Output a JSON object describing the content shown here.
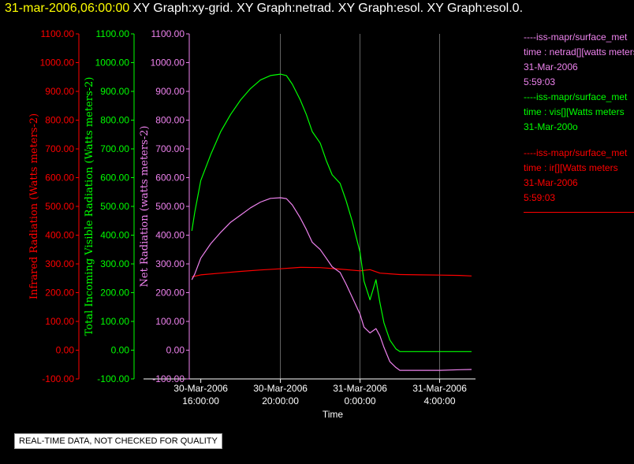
{
  "header": {
    "date_label": "31-mar-2006,06:00:00",
    "graph_labels": [
      "XY Graph:xy-grid.",
      "XY Graph:netrad.",
      "XY Graph:esol.",
      "XY Graph:esol.0."
    ]
  },
  "legend": [
    {
      "color": "#ee82ee",
      "lines": [
        "----iss-mapr/surface_met",
        "time : netrad[][watts meters",
        "31-Mar-2006",
        "5:59:03"
      ]
    },
    {
      "color": "#00ff00",
      "lines": [
        "----iss-mapr/surface_met",
        "time : vis[][Watts meters",
        "31-Mar-200o"
      ]
    },
    {
      "color": "#ff0000",
      "lines": [
        "----iss-mapr/surface_met",
        "time : ir[][Watts meters",
        "31-Mar-2006",
        "5:59:03"
      ]
    }
  ],
  "notice": "REAL-TIME DATA, NOT CHECKED FOR QUALITY",
  "chart_data": {
    "type": "line",
    "xlabel": "Time",
    "x_ticks": [
      {
        "hour": 16,
        "label1": "30-Mar-2006",
        "label2": "16:00:00"
      },
      {
        "hour": 20,
        "label1": "30-Mar-2006",
        "label2": "20:00:00"
      },
      {
        "hour": 24,
        "label1": "31-Mar-2006",
        "label2": "0:00:00"
      },
      {
        "hour": 28,
        "label1": "31-Mar-2006",
        "label2": "4:00:00"
      }
    ],
    "xlim": [
      15.5,
      29.8
    ],
    "grid": "vertical",
    "y_axes": [
      {
        "name": "infrared",
        "label": "Infrared Radiation (Watts meters-2)",
        "color": "#ff0000",
        "ticks": [
          "-100.00",
          "0.00",
          "100.00",
          "200.00",
          "300.00",
          "400.00",
          "500.00",
          "600.00",
          "700.00",
          "800.00",
          "900.00",
          "1000.00",
          "1100.00"
        ],
        "ylim": [
          -100,
          1100
        ]
      },
      {
        "name": "visible",
        "label": "Total Incoming Visible Radiation (Watts meters-2)",
        "color": "#00ff00",
        "ticks": [
          "-100.00",
          "0.00",
          "100.00",
          "200.00",
          "300.00",
          "400.00",
          "500.00",
          "600.00",
          "700.00",
          "800.00",
          "900.00",
          "1000.00",
          "1100.00"
        ],
        "ylim": [
          -100,
          1100
        ]
      },
      {
        "name": "netrad",
        "label": "Net Radiation (watts meters-2)",
        "color": "#ee82ee",
        "ticks": [
          "-100.00",
          "0.00",
          "100.00",
          "200.00",
          "300.00",
          "400.00",
          "500.00",
          "600.00",
          "700.00",
          "800.00",
          "900.00",
          "1000.00",
          "1100.00"
        ],
        "ylim": [
          -100,
          1100
        ]
      }
    ],
    "series": [
      {
        "axis": "infrared",
        "color": "#ff0000",
        "x": [
          15.55,
          16,
          17,
          18,
          19,
          20,
          21,
          22,
          23,
          24,
          24.5,
          25,
          26,
          27,
          28,
          29,
          29.6
        ],
        "y": [
          255,
          262,
          268,
          274,
          279,
          283,
          288,
          287,
          282,
          276,
          280,
          268,
          263,
          262,
          261,
          260,
          258
        ]
      },
      {
        "axis": "visible",
        "color": "#00ff00",
        "x": [
          15.55,
          15.7,
          16,
          16.5,
          17,
          17.5,
          18,
          18.5,
          19,
          19.5,
          20,
          20.3,
          20.6,
          21,
          21.3,
          21.6,
          22,
          22.3,
          22.6,
          23,
          23.3,
          23.6,
          24,
          24.2,
          24.5,
          24.8,
          25,
          25.2,
          25.5,
          25.8,
          26,
          26.2,
          26.5,
          27,
          28,
          29,
          29.6
        ],
        "y": [
          415,
          480,
          590,
          680,
          760,
          820,
          870,
          910,
          940,
          955,
          960,
          955,
          925,
          870,
          820,
          760,
          720,
          660,
          610,
          580,
          520,
          450,
          340,
          240,
          175,
          245,
          165,
          95,
          35,
          5,
          -5,
          -5,
          -5,
          -5,
          -5,
          -5,
          -5
        ]
      },
      {
        "axis": "netrad",
        "color": "#ee82ee",
        "x": [
          15.55,
          15.7,
          16,
          16.5,
          17,
          17.5,
          18,
          18.5,
          19,
          19.5,
          20,
          20.3,
          20.6,
          21,
          21.3,
          21.6,
          22,
          22.3,
          22.6,
          23,
          23.3,
          23.6,
          24,
          24.2,
          24.5,
          24.8,
          25,
          25.2,
          25.5,
          25.8,
          26,
          26.2,
          26.5,
          27,
          28,
          29,
          29.6
        ],
        "y": [
          245,
          265,
          320,
          370,
          410,
          445,
          470,
          495,
          515,
          528,
          530,
          527,
          505,
          460,
          420,
          375,
          350,
          320,
          290,
          270,
          230,
          185,
          125,
          80,
          60,
          75,
          50,
          10,
          -40,
          -60,
          -70,
          -70,
          -70,
          -70,
          -70,
          -68,
          -67
        ]
      }
    ]
  }
}
